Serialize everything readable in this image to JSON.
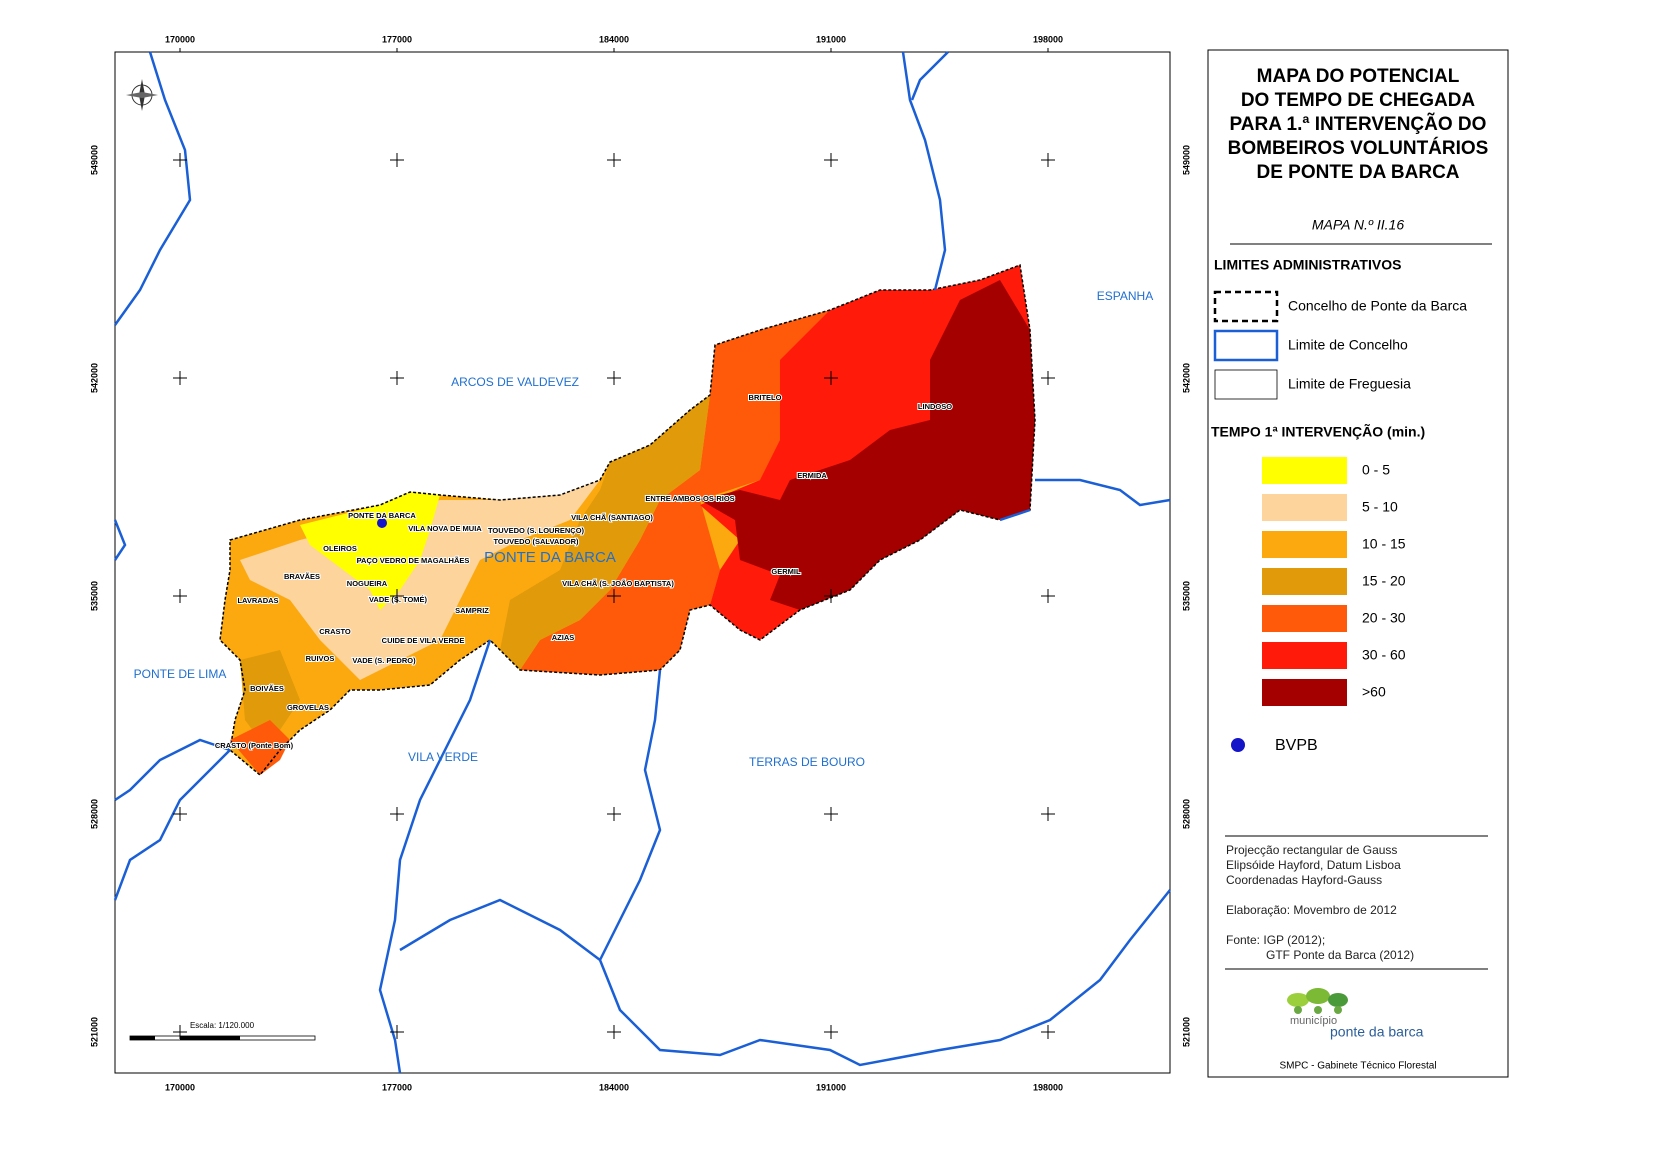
{
  "map": {
    "xticks": [
      170000,
      177000,
      184000,
      191000,
      198000
    ],
    "yticks": [
      549000,
      542000,
      535000,
      528000,
      521000
    ],
    "regions": [
      "ARCOS DE VALDEVEZ",
      "ESPANHA",
      "PONTE DE LIMA",
      "VILA VERDE",
      "TERRAS DE BOURO",
      "PONTE DA BARCA"
    ],
    "parishes": [
      "PONTE DA BARCA",
      "VILA NOVA DE MUIA",
      "TOUVEDO (S. LOURENÇO)",
      "TOUVEDO (SALVADOR)",
      "VILA CHÃ (SANTIAGO)",
      "ENTRE AMBOS-OS-RIOS",
      "BRITELO",
      "LINDOSO",
      "ERMIDA",
      "GERMIL",
      "OLEIROS",
      "PAÇO VEDRO DE MAGALHÃES",
      "BRAVÃES",
      "NOGUEIRA",
      "VILA CHÃ (S. JOÃO BAPTISTA)",
      "LAVRADAS",
      "VADE (S. TOMÉ)",
      "SAMPRIZ",
      "CRASTO",
      "CUIDE DE VILA VERDE",
      "AZIAS",
      "RUIVOS",
      "VADE (S. PEDRO)",
      "BOIVÃES",
      "GROVELAS",
      "CRASTO (Ponte Bom)"
    ],
    "scale": "Escala: 1/120.000"
  },
  "legend": {
    "title": [
      "MAPA DO POTENCIAL",
      "DO TEMPO DE CHEGADA",
      "PARA 1.ª INTERVENÇÃO DO",
      "BOMBEIROS VOLUNTÁRIOS",
      "DE PONTE DA BARCA"
    ],
    "map_number": "MAPA N.º II.16",
    "admin_title": "LIMITES ADMINISTRATIVOS",
    "admin_items": [
      "Concelho de Ponte da Barca",
      "Limite de Concelho",
      "Limite de Freguesia"
    ],
    "time_title": "TEMPO 1ª INTERVENÇÃO (min.)",
    "time_classes": [
      {
        "label": "0 - 5",
        "color": "#ffff00"
      },
      {
        "label": "5 - 10",
        "color": "#fdd49c"
      },
      {
        "label": "10 - 15",
        "color": "#fca90f"
      },
      {
        "label": "15 - 20",
        "color": "#e09a0a"
      },
      {
        "label": "20 - 30",
        "color": "#ff5a0a"
      },
      {
        "label": "30 - 60",
        "color": "#ff1a0a"
      },
      {
        "label": ">60",
        "color": "#a50000"
      }
    ],
    "point": "BVPB",
    "notes": [
      "Projecção rectangular de Gauss",
      "Elipsóide Hayford, Datum Lisboa",
      "Coordenadas Hayford-Gauss",
      "Elaboração: Movembro de 2012",
      "Fonte: IGP (2012);",
      "GTF Ponte da Barca (2012)"
    ],
    "logo": [
      "município",
      "ponte da barca"
    ],
    "footer": "SMPC - Gabinete Técnico Florestal"
  }
}
